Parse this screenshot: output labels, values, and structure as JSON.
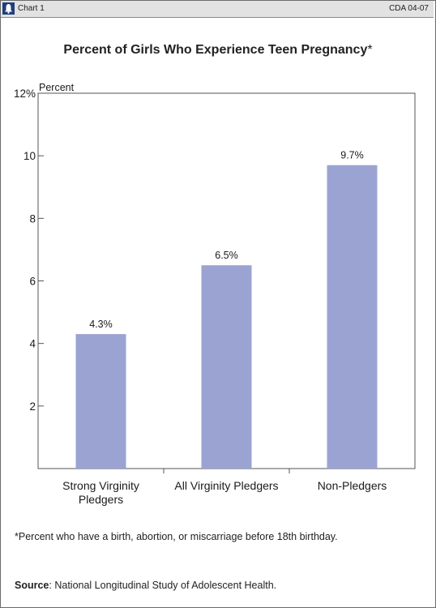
{
  "header": {
    "chart_label": "Chart 1",
    "code": "CDA 04-07"
  },
  "footnote": "*Percent who have a birth, abortion, or miscarriage before 18th birthday.",
  "source": {
    "label": "Source",
    "text": ": National Longitudinal Study of Adolescent Health."
  },
  "colors": {
    "bar": "#9ba3d2",
    "header_bg": "#e2e2e2",
    "icon_bg": "#1e3f7a"
  },
  "chart_data": {
    "type": "bar",
    "title": "Percent of Girls Who Experience Teen Pregnancy",
    "title_mark": "*",
    "ylabel": "Percent",
    "ylim": [
      0,
      12
    ],
    "yticks": [
      2,
      4,
      6,
      8,
      10,
      12
    ],
    "ytick_labels": [
      "2",
      "4",
      "6",
      "8",
      "10",
      "12%"
    ],
    "categories": [
      [
        "Strong Virginity",
        "Pledgers"
      ],
      [
        "All Virginity Pledgers"
      ],
      [
        "Non-Pledgers"
      ]
    ],
    "values": [
      4.3,
      6.5,
      9.7
    ],
    "data_labels": [
      "4.3%",
      "6.5%",
      "9.7%"
    ],
    "grid": false
  }
}
